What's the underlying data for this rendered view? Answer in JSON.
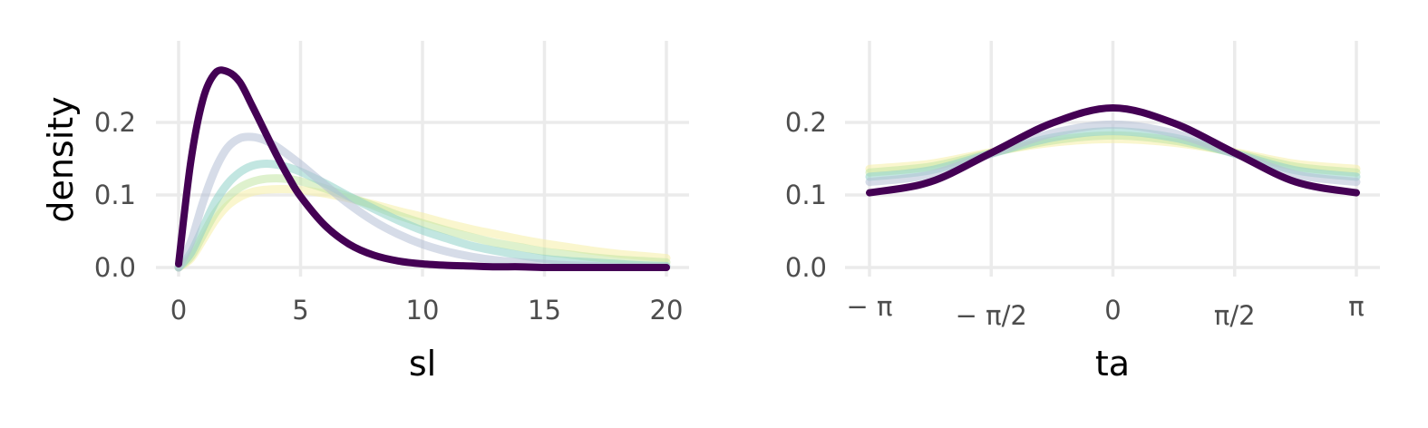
{
  "chart_data": [
    {
      "type": "line",
      "xlabel": "sl",
      "ylabel": "density",
      "xlim": [
        0,
        20
      ],
      "ylim": [
        0,
        0.3
      ],
      "x_ticks": [
        0,
        5,
        10,
        15,
        20
      ],
      "x_tick_labels": [
        "0",
        "5",
        "10",
        "15",
        "20"
      ],
      "y_ticks": [
        0,
        0.1,
        0.2
      ],
      "y_tick_labels": [
        "0.0",
        "0.1",
        "0.2"
      ],
      "grid": true,
      "legend": "none",
      "x": [
        0,
        0.5,
        1,
        1.5,
        2,
        2.5,
        3,
        3.5,
        4,
        4.5,
        5,
        6,
        7,
        8,
        9,
        10,
        11,
        12,
        13,
        14,
        15,
        16,
        17,
        18,
        19,
        20
      ],
      "series": [
        {
          "color": "#440154",
          "emphasis": "bold",
          "values": [
            0.005,
            0.146,
            0.232,
            0.268,
            0.27,
            0.256,
            0.224,
            0.19,
            0.156,
            0.125,
            0.098,
            0.058,
            0.032,
            0.017,
            0.009,
            0.005,
            0.003,
            0.002,
            0.001,
            0.001,
            0,
            0,
            0,
            0,
            0,
            0
          ]
        },
        {
          "color": "#b5bfd6",
          "emphasis": "faded",
          "values": [
            0,
            0.035,
            0.09,
            0.135,
            0.165,
            0.178,
            0.18,
            0.176,
            0.167,
            0.155,
            0.142,
            0.114,
            0.087,
            0.064,
            0.046,
            0.032,
            0.022,
            0.015,
            0.01,
            0.007,
            0.005,
            0.003,
            0.002,
            0.001,
            0.001,
            0.001
          ]
        },
        {
          "color": "#8fd1c9",
          "emphasis": "faded",
          "values": [
            0,
            0.02,
            0.055,
            0.09,
            0.115,
            0.131,
            0.14,
            0.143,
            0.142,
            0.138,
            0.132,
            0.116,
            0.098,
            0.081,
            0.065,
            0.051,
            0.04,
            0.03,
            0.023,
            0.017,
            0.012,
            0.009,
            0.007,
            0.005,
            0.003,
            0.002
          ]
        },
        {
          "color": "#c3e6a4",
          "emphasis": "faded",
          "values": [
            0,
            0.015,
            0.045,
            0.075,
            0.096,
            0.11,
            0.118,
            0.122,
            0.123,
            0.122,
            0.119,
            0.109,
            0.097,
            0.085,
            0.072,
            0.061,
            0.051,
            0.042,
            0.034,
            0.028,
            0.022,
            0.018,
            0.014,
            0.011,
            0.009,
            0.007
          ]
        },
        {
          "color": "#f6efa6",
          "emphasis": "faded",
          "values": [
            0,
            0.012,
            0.038,
            0.065,
            0.085,
            0.097,
            0.104,
            0.107,
            0.108,
            0.108,
            0.107,
            0.102,
            0.095,
            0.087,
            0.078,
            0.07,
            0.061,
            0.053,
            0.046,
            0.039,
            0.033,
            0.028,
            0.023,
            0.019,
            0.016,
            0.013
          ]
        }
      ]
    },
    {
      "type": "line",
      "xlabel": "ta",
      "ylabel": "",
      "xlim": [
        -3.14159,
        3.14159
      ],
      "ylim": [
        0,
        0.3
      ],
      "x_ticks": [
        -3.14159,
        -1.5708,
        0,
        1.5708,
        3.14159
      ],
      "x_tick_labels": [
        "− π",
        "− π/2",
        "0",
        "π/2",
        "π"
      ],
      "y_ticks": [
        0,
        0.1,
        0.2
      ],
      "y_tick_labels": [
        "0.0",
        "0.1",
        "0.2"
      ],
      "grid": true,
      "legend": "none",
      "x": [
        -3.14159,
        -2.35619,
        -1.5708,
        -0.785398,
        0,
        0.785398,
        1.5708,
        2.35619,
        3.14159
      ],
      "series": [
        {
          "color": "#440154",
          "emphasis": "bold",
          "values": [
            0.103,
            0.118,
            0.158,
            0.199,
            0.22,
            0.199,
            0.158,
            0.118,
            0.103
          ]
        },
        {
          "color": "#b5bfd6",
          "emphasis": "faded",
          "values": [
            0.118,
            0.128,
            0.157,
            0.185,
            0.197,
            0.185,
            0.157,
            0.128,
            0.118
          ]
        },
        {
          "color": "#8fd1c9",
          "emphasis": "faded",
          "values": [
            0.125,
            0.134,
            0.157,
            0.179,
            0.188,
            0.179,
            0.157,
            0.134,
            0.125
          ]
        },
        {
          "color": "#c3e6a4",
          "emphasis": "faded",
          "values": [
            0.131,
            0.139,
            0.158,
            0.175,
            0.182,
            0.175,
            0.158,
            0.139,
            0.131
          ]
        },
        {
          "color": "#f6efa6",
          "emphasis": "faded",
          "values": [
            0.136,
            0.143,
            0.159,
            0.172,
            0.177,
            0.172,
            0.159,
            0.143,
            0.136
          ]
        }
      ]
    }
  ]
}
